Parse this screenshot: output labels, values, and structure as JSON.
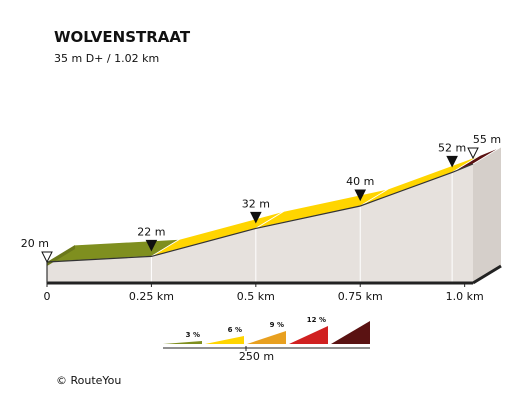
{
  "chart_data": {
    "type": "area",
    "title": "WOLVENSTRAAT",
    "subtitle": "35 m D+ / 1.02 km",
    "x_unit": "km",
    "y_unit": "m",
    "xlim": [
      0,
      1.02
    ],
    "ylim": [
      20,
      55
    ],
    "segments": [
      {
        "from_km": 0.0,
        "to_km": 0.25,
        "from_m": 20,
        "to_m": 22,
        "color": "#7f8f1f"
      },
      {
        "from_km": 0.25,
        "to_km": 0.5,
        "from_m": 22,
        "to_m": 32,
        "color": "#ffd500"
      },
      {
        "from_km": 0.5,
        "to_km": 0.75,
        "from_m": 32,
        "to_m": 40,
        "color": "#ffd500"
      },
      {
        "from_km": 0.75,
        "to_km": 0.97,
        "from_m": 40,
        "to_m": 52,
        "color": "#ffd500"
      },
      {
        "from_km": 0.97,
        "to_km": 1.02,
        "from_m": 52,
        "to_m": 55,
        "color": "#5a1212"
      }
    ],
    "markers": [
      {
        "km": 0.0,
        "label": "20 m",
        "style": "open"
      },
      {
        "km": 0.25,
        "label": "22 m",
        "style": "filled"
      },
      {
        "km": 0.5,
        "label": "32 m",
        "style": "filled"
      },
      {
        "km": 0.75,
        "label": "40 m",
        "style": "filled"
      },
      {
        "km": 0.97,
        "label": "52 m",
        "style": "filled"
      },
      {
        "km": 1.02,
        "label": "55 m",
        "style": "open"
      }
    ],
    "x_ticks": [
      {
        "km": 0.0,
        "label": "0"
      },
      {
        "km": 0.25,
        "label": "0.25 km"
      },
      {
        "km": 0.5,
        "label": "0.5 km"
      },
      {
        "km": 0.75,
        "label": "0.75 km"
      },
      {
        "km": 1.0,
        "label": "1.0 km"
      }
    ],
    "legend": {
      "position": "bottom-right",
      "items": [
        {
          "label": "3 %",
          "color": "#7f8f1f"
        },
        {
          "label": "6 %",
          "color": "#ffd500"
        },
        {
          "label": "9 %",
          "color": "#e8a020"
        },
        {
          "label": "12 %",
          "color": "#d02020"
        },
        {
          "label": "",
          "color": "#5a1212"
        }
      ],
      "scale_label": "250 m"
    }
  },
  "copyright": "© RouteYou"
}
